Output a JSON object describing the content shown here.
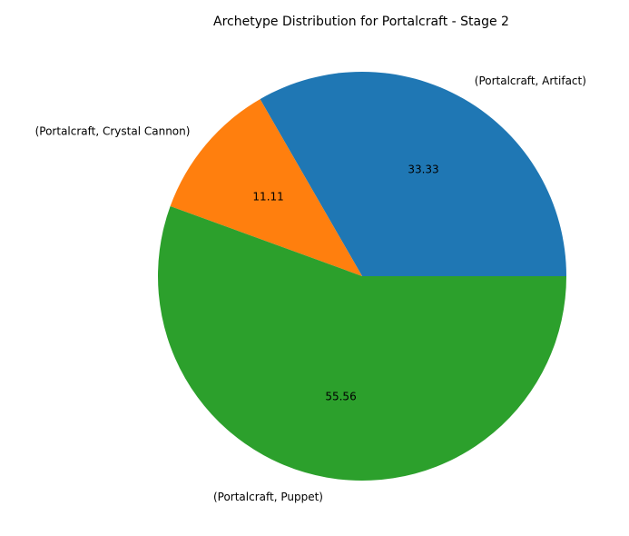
{
  "chart_data": {
    "type": "pie",
    "title": "Archetype Distribution for Portalcraft - Stage 2",
    "series": [
      {
        "labels": [
          "(Portalcraft, Artifact)",
          "(Portalcraft, Crystal Cannon)",
          "(Portalcraft, Puppet)"
        ],
        "values": [
          33.33,
          11.11,
          55.56
        ],
        "value_labels": [
          "33.33",
          "11.11",
          "55.56"
        ],
        "colors": [
          "#1f77b4",
          "#ff7f0e",
          "#2ca02c"
        ]
      }
    ],
    "start_angle_deg": 0,
    "direction": "counterclockwise",
    "legend": "none"
  }
}
